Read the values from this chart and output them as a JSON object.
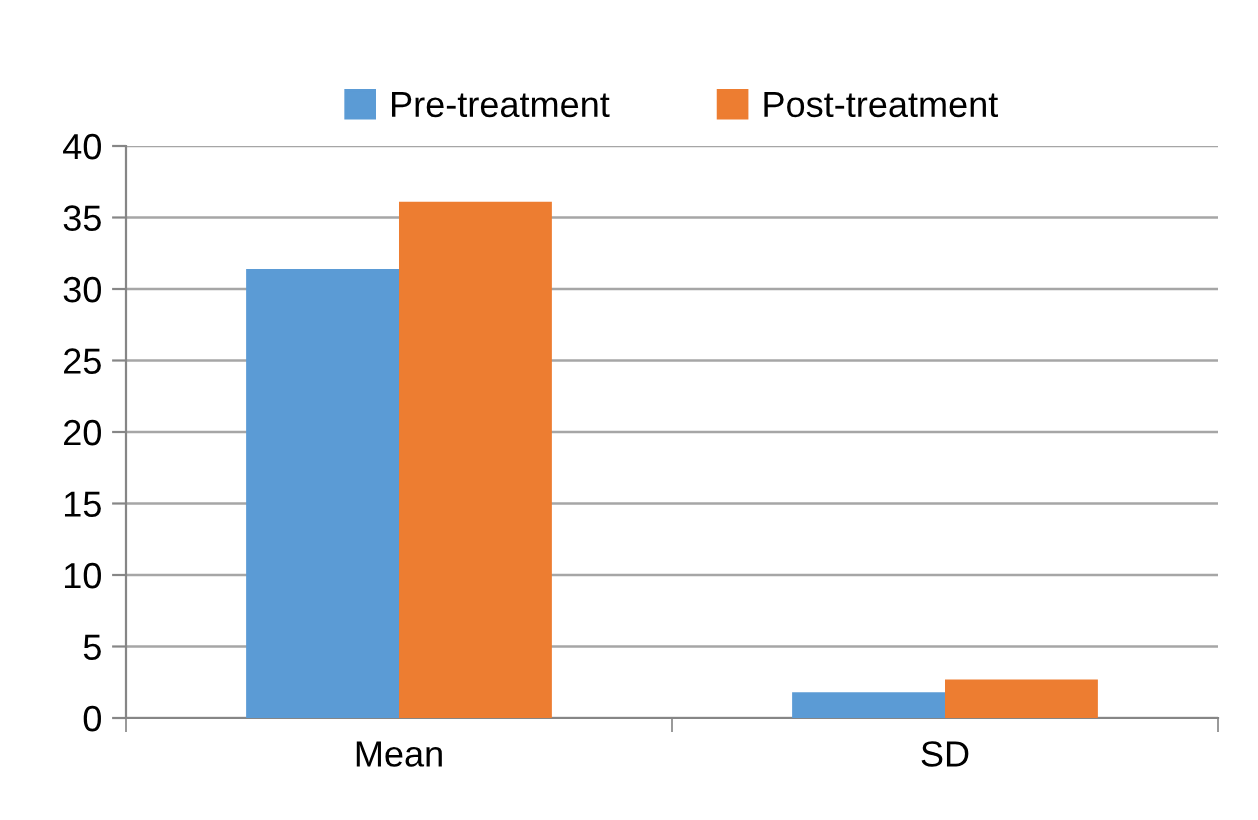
{
  "chart_data": {
    "type": "bar",
    "categories": [
      "Mean",
      "SD"
    ],
    "series": [
      {
        "name": "Pre-treatment",
        "color": "#5b9bd5",
        "values": [
          31.4,
          1.8
        ]
      },
      {
        "name": "Post-treatment",
        "color": "#ed7d31",
        "values": [
          36.1,
          2.7
        ]
      }
    ],
    "ylim": [
      0,
      40
    ],
    "yticks": [
      0,
      5,
      10,
      15,
      20,
      25,
      30,
      35,
      40
    ],
    "grid": "y",
    "legend": "top"
  }
}
